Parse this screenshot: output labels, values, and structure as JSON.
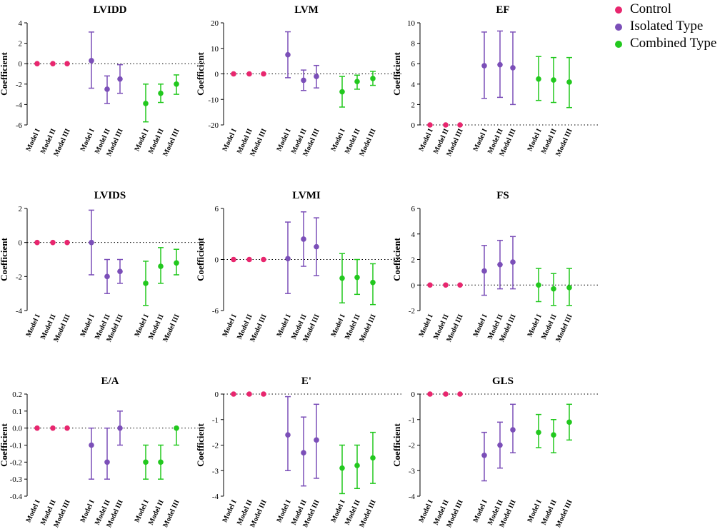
{
  "legend": [
    {
      "label": "Control",
      "color": "#e8266e"
    },
    {
      "label": "Isolated Type",
      "color": "#7b4fb8"
    },
    {
      "label": "Combined Type",
      "color": "#22c81e"
    }
  ],
  "chart_data": [
    {
      "type": "scatter",
      "title": "LVIDD",
      "ylabel": "Coefficient",
      "ylim": [
        -6,
        4
      ],
      "yticks": [
        4,
        2,
        0,
        -2,
        -4,
        -6
      ],
      "categories": [
        "Model I",
        "Model II",
        "Model III",
        "Model I",
        "Model II",
        "Model III",
        "Model I",
        "Model II",
        "Model III"
      ],
      "series": [
        {
          "name": "Control",
          "points": [
            {
              "label": "Model I",
              "value": 0
            },
            {
              "label": "Model II",
              "value": 0
            },
            {
              "label": "Model III",
              "value": 0
            }
          ]
        },
        {
          "name": "Isolated Type",
          "points": [
            {
              "label": "Model I",
              "value": 0.3,
              "lo": -2.4,
              "hi": 3.1
            },
            {
              "label": "Model II",
              "value": -2.5,
              "lo": -3.9,
              "hi": -1.2
            },
            {
              "label": "Model III",
              "value": -1.5,
              "lo": -2.9,
              "hi": -0.1
            }
          ]
        },
        {
          "name": "Combined Type",
          "points": [
            {
              "label": "Model I",
              "value": -3.9,
              "lo": -5.7,
              "hi": -2.0
            },
            {
              "label": "Model II",
              "value": -2.9,
              "lo": -3.8,
              "hi": -2.0
            },
            {
              "label": "Model III",
              "value": -2.0,
              "lo": -3.0,
              "hi": -1.1
            }
          ]
        }
      ]
    },
    {
      "type": "scatter",
      "title": "LVM",
      "ylabel": "Coefficient",
      "ylim": [
        -20,
        20
      ],
      "yticks": [
        20,
        10,
        0,
        -10,
        -20
      ],
      "categories": [
        "Model I",
        "Model II",
        "Model III",
        "Model I",
        "Model II",
        "Model III",
        "Model I",
        "Model II",
        "Model III"
      ],
      "series": [
        {
          "name": "Control",
          "points": [
            {
              "label": "Model I",
              "value": 0
            },
            {
              "label": "Model II",
              "value": 0
            },
            {
              "label": "Model III",
              "value": 0
            }
          ]
        },
        {
          "name": "Isolated Type",
          "points": [
            {
              "label": "Model I",
              "value": 7.5,
              "lo": -1.5,
              "hi": 16.5
            },
            {
              "label": "Model II",
              "value": -2.5,
              "lo": -6.5,
              "hi": 1.5
            },
            {
              "label": "Model III",
              "value": -1.0,
              "lo": -5.5,
              "hi": 3.3
            }
          ]
        },
        {
          "name": "Combined Type",
          "points": [
            {
              "label": "Model I",
              "value": -7.0,
              "lo": -13.0,
              "hi": -1.0
            },
            {
              "label": "Model II",
              "value": -3.0,
              "lo": -6.0,
              "hi": -0.5
            },
            {
              "label": "Model III",
              "value": -1.8,
              "lo": -4.5,
              "hi": 1.0
            }
          ]
        }
      ]
    },
    {
      "type": "scatter",
      "title": "EF",
      "ylabel": "Coefficient",
      "ylim": [
        0,
        10
      ],
      "yticks": [
        10,
        8,
        6,
        4,
        2,
        0
      ],
      "categories": [
        "Model I",
        "Model II",
        "Model III",
        "Model I",
        "Model II",
        "Model III",
        "Model I",
        "Model II",
        "Model III"
      ],
      "series": [
        {
          "name": "Control",
          "points": [
            {
              "label": "Model I",
              "value": 0
            },
            {
              "label": "Model II",
              "value": 0
            },
            {
              "label": "Model III",
              "value": 0
            }
          ]
        },
        {
          "name": "Isolated Type",
          "points": [
            {
              "label": "Model I",
              "value": 5.8,
              "lo": 2.6,
              "hi": 9.1
            },
            {
              "label": "Model II",
              "value": 5.9,
              "lo": 2.7,
              "hi": 9.2
            },
            {
              "label": "Model III",
              "value": 5.6,
              "lo": 2.0,
              "hi": 9.1
            }
          ]
        },
        {
          "name": "Combined Type",
          "points": [
            {
              "label": "Model I",
              "value": 4.5,
              "lo": 2.4,
              "hi": 6.7
            },
            {
              "label": "Model II",
              "value": 4.4,
              "lo": 2.2,
              "hi": 6.6
            },
            {
              "label": "Model III",
              "value": 4.2,
              "lo": 1.7,
              "hi": 6.6
            }
          ]
        }
      ]
    },
    {
      "type": "scatter",
      "title": "LVIDS",
      "ylabel": "Coefficient",
      "ylim": [
        -4,
        2
      ],
      "yticks": [
        2,
        0,
        -2,
        -4
      ],
      "categories": [
        "Model I",
        "Model II",
        "Model III",
        "Model I",
        "Model II",
        "Model III",
        "Model I",
        "Model II",
        "Model III"
      ],
      "series": [
        {
          "name": "Control",
          "points": [
            {
              "label": "Model I",
              "value": 0
            },
            {
              "label": "Model II",
              "value": 0
            },
            {
              "label": "Model III",
              "value": 0
            }
          ]
        },
        {
          "name": "Isolated Type",
          "points": [
            {
              "label": "Model I",
              "value": 0.0,
              "lo": -1.9,
              "hi": 1.9
            },
            {
              "label": "Model II",
              "value": -2.0,
              "lo": -3.0,
              "hi": -1.0
            },
            {
              "label": "Model III",
              "value": -1.7,
              "lo": -2.4,
              "hi": -1.0
            }
          ]
        },
        {
          "name": "Combined Type",
          "points": [
            {
              "label": "Model I",
              "value": -2.4,
              "lo": -3.7,
              "hi": -1.1
            },
            {
              "label": "Model II",
              "value": -1.4,
              "lo": -2.4,
              "hi": -0.3
            },
            {
              "label": "Model III",
              "value": -1.2,
              "lo": -1.9,
              "hi": -0.4
            }
          ]
        }
      ]
    },
    {
      "type": "scatter",
      "title": "LVMI",
      "ylabel": "Coefficient",
      "ylim": [
        -6,
        6
      ],
      "yticks": [
        6,
        0,
        -6
      ],
      "categories": [
        "Model I",
        "Model II",
        "Model III",
        "Model I",
        "Model II",
        "Model III",
        "Model I",
        "Model II",
        "Model III"
      ],
      "series": [
        {
          "name": "Control",
          "points": [
            {
              "label": "Model I",
              "value": 0
            },
            {
              "label": "Model II",
              "value": 0
            },
            {
              "label": "Model III",
              "value": 0
            }
          ]
        },
        {
          "name": "Isolated Type",
          "points": [
            {
              "label": "Model I",
              "value": 0.1,
              "lo": -4.0,
              "hi": 4.4
            },
            {
              "label": "Model II",
              "value": 2.4,
              "lo": -0.8,
              "hi": 5.6
            },
            {
              "label": "Model III",
              "value": 1.5,
              "lo": -1.9,
              "hi": 4.9
            }
          ]
        },
        {
          "name": "Combined Type",
          "points": [
            {
              "label": "Model I",
              "value": -2.2,
              "lo": -5.1,
              "hi": 0.7
            },
            {
              "label": "Model II",
              "value": -2.1,
              "lo": -4.1,
              "hi": 0.0
            },
            {
              "label": "Model III",
              "value": -2.7,
              "lo": -5.3,
              "hi": -0.5
            }
          ]
        }
      ]
    },
    {
      "type": "scatter",
      "title": "FS",
      "ylabel": "Coefficient",
      "ylim": [
        -2,
        6
      ],
      "yticks": [
        6,
        4,
        2,
        0,
        -2
      ],
      "categories": [
        "Model I",
        "Model II",
        "Model III",
        "Model I",
        "Model II",
        "Model III",
        "Model I",
        "Model II",
        "Model III"
      ],
      "series": [
        {
          "name": "Control",
          "points": [
            {
              "label": "Model I",
              "value": 0
            },
            {
              "label": "Model II",
              "value": 0
            },
            {
              "label": "Model III",
              "value": 0
            }
          ]
        },
        {
          "name": "Isolated Type",
          "points": [
            {
              "label": "Model I",
              "value": 1.1,
              "lo": -0.8,
              "hi": 3.1
            },
            {
              "label": "Model II",
              "value": 1.6,
              "lo": -0.3,
              "hi": 3.5
            },
            {
              "label": "Model III",
              "value": 1.8,
              "lo": -0.3,
              "hi": 3.8
            }
          ]
        },
        {
          "name": "Combined Type",
          "points": [
            {
              "label": "Model I",
              "value": 0.0,
              "lo": -1.3,
              "hi": 1.3
            },
            {
              "label": "Model II",
              "value": -0.3,
              "lo": -1.6,
              "hi": 0.9
            },
            {
              "label": "Model III",
              "value": -0.2,
              "lo": -1.6,
              "hi": 1.3
            }
          ]
        }
      ]
    },
    {
      "type": "scatter",
      "title": "E/A",
      "ylabel": "Coefficient",
      "ylim": [
        -0.4,
        0.2
      ],
      "yticks": [
        "0.2",
        "0.1",
        "0.0",
        "-0.1",
        "-0.2",
        "-0.3",
        "-0.4"
      ],
      "categories": [
        "Model I",
        "Model II",
        "Model III",
        "Model I",
        "Model II",
        "Model III",
        "Model I",
        "Model II",
        "Model III"
      ],
      "series": [
        {
          "name": "Control",
          "points": [
            {
              "label": "Model I",
              "value": 0
            },
            {
              "label": "Model II",
              "value": 0
            },
            {
              "label": "Model III",
              "value": 0
            }
          ]
        },
        {
          "name": "Isolated Type",
          "points": [
            {
              "label": "Model I",
              "value": -0.1,
              "lo": -0.3,
              "hi": 0.0
            },
            {
              "label": "Model II",
              "value": -0.2,
              "lo": -0.3,
              "hi": 0.0
            },
            {
              "label": "Model III",
              "value": 0.0,
              "lo": -0.1,
              "hi": 0.1
            }
          ]
        },
        {
          "name": "Combined Type",
          "points": [
            {
              "label": "Model I",
              "value": -0.2,
              "lo": -0.3,
              "hi": -0.1
            },
            {
              "label": "Model II",
              "value": -0.2,
              "lo": -0.3,
              "hi": -0.1
            },
            {
              "label": "Model III",
              "value": 0.0,
              "lo": -0.1,
              "hi": 0.0
            }
          ]
        }
      ]
    },
    {
      "type": "scatter",
      "title": "E'",
      "ylabel": "Coefficient",
      "ylim": [
        -4,
        0
      ],
      "yticks": [
        0,
        -1,
        -2,
        -3,
        -4
      ],
      "categories": [
        "Model I",
        "Model II",
        "Model III",
        "Model I",
        "Model II",
        "Model III",
        "Model I",
        "Model II",
        "Model III"
      ],
      "series": [
        {
          "name": "Control",
          "points": [
            {
              "label": "Model I",
              "value": 0
            },
            {
              "label": "Model II",
              "value": 0
            },
            {
              "label": "Model III",
              "value": 0
            }
          ]
        },
        {
          "name": "Isolated Type",
          "points": [
            {
              "label": "Model I",
              "value": -1.6,
              "lo": -3.0,
              "hi": -0.1
            },
            {
              "label": "Model II",
              "value": -2.3,
              "lo": -3.6,
              "hi": -0.9
            },
            {
              "label": "Model III",
              "value": -1.8,
              "lo": -3.3,
              "hi": -0.4
            }
          ]
        },
        {
          "name": "Combined Type",
          "points": [
            {
              "label": "Model I",
              "value": -2.9,
              "lo": -3.9,
              "hi": -2.0
            },
            {
              "label": "Model II",
              "value": -2.8,
              "lo": -3.7,
              "hi": -2.0
            },
            {
              "label": "Model III",
              "value": -2.5,
              "lo": -3.5,
              "hi": -1.5
            }
          ]
        }
      ]
    },
    {
      "type": "scatter",
      "title": "GLS",
      "ylabel": "Coefficient",
      "ylim": [
        -4,
        0
      ],
      "yticks": [
        0,
        -1,
        -2,
        -3,
        -4
      ],
      "categories": [
        "Model I",
        "Model II",
        "Model III",
        "Model I",
        "Model II",
        "Model III",
        "Model I",
        "Model II",
        "Model III"
      ],
      "series": [
        {
          "name": "Control",
          "points": [
            {
              "label": "Model I",
              "value": 0
            },
            {
              "label": "Model II",
              "value": 0
            },
            {
              "label": "Model III",
              "value": 0
            }
          ]
        },
        {
          "name": "Isolated Type",
          "points": [
            {
              "label": "Model I",
              "value": -2.4,
              "lo": -3.4,
              "hi": -1.5
            },
            {
              "label": "Model II",
              "value": -2.0,
              "lo": -2.9,
              "hi": -1.1
            },
            {
              "label": "Model III",
              "value": -1.4,
              "lo": -2.3,
              "hi": -0.4
            }
          ]
        },
        {
          "name": "Combined Type",
          "points": [
            {
              "label": "Model I",
              "value": -1.5,
              "lo": -2.1,
              "hi": -0.8
            },
            {
              "label": "Model II",
              "value": -1.6,
              "lo": -2.3,
              "hi": -1.0
            },
            {
              "label": "Model III",
              "value": -1.1,
              "lo": -1.8,
              "hi": -0.4
            }
          ]
        }
      ]
    }
  ]
}
